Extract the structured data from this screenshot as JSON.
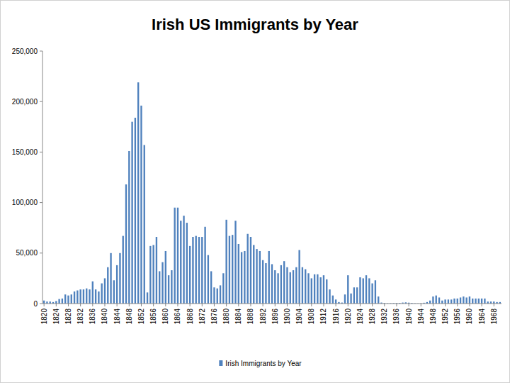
{
  "chart_data": {
    "type": "bar",
    "title": "Irish US Immigrants by Year",
    "categories": [
      "1820",
      null,
      null,
      null,
      "1824",
      null,
      null,
      null,
      "1828",
      null,
      null,
      null,
      "1832",
      null,
      null,
      null,
      "1836",
      null,
      null,
      null,
      "1840",
      null,
      null,
      null,
      "1844",
      null,
      null,
      null,
      "1848",
      null,
      null,
      null,
      "1852",
      null,
      null,
      null,
      "1856",
      null,
      null,
      null,
      "1860",
      null,
      null,
      null,
      "1864",
      null,
      null,
      null,
      "1868",
      null,
      null,
      null,
      "1872",
      null,
      null,
      null,
      "1876",
      null,
      null,
      null,
      "1880",
      null,
      null,
      null,
      "1884",
      null,
      null,
      null,
      "1888",
      null,
      null,
      null,
      "1892",
      null,
      null,
      null,
      "1896",
      null,
      null,
      null,
      "1900",
      null,
      null,
      null,
      "1904",
      null,
      null,
      null,
      "1908",
      null,
      null,
      null,
      "1912",
      null,
      null,
      null,
      "1916",
      null,
      null,
      null,
      "1920",
      null,
      null,
      null,
      "1924",
      null,
      null,
      null,
      "1928",
      null,
      null,
      null,
      "1932",
      null,
      null,
      null,
      "1936",
      null,
      null,
      null,
      "1940",
      null,
      null,
      null,
      "1944",
      null,
      null,
      null,
      "1948",
      null,
      null,
      null,
      "1952",
      null,
      null,
      null,
      "1956",
      null,
      null,
      null,
      "1960",
      null,
      null,
      null,
      "1964",
      null,
      null,
      null,
      "1968",
      null,
      null
    ],
    "series": [
      {
        "name": "Irish Immigrants by Year",
        "color": "#4f81bd",
        "values": [
          3000,
          2000,
          2000,
          1500,
          2500,
          4500,
          5000,
          9000,
          8000,
          9000,
          12000,
          13000,
          14000,
          14000,
          15000,
          14000,
          22000,
          14000,
          12000,
          20000,
          25000,
          36000,
          50000,
          23000,
          38000,
          50000,
          67000,
          118000,
          151000,
          180000,
          184000,
          219000,
          196000,
          157000,
          11000,
          57000,
          58000,
          66000,
          32000,
          41000,
          52000,
          28000,
          33000,
          95000,
          95000,
          82000,
          87000,
          80000,
          57000,
          66000,
          67000,
          66000,
          66000,
          76000,
          48000,
          32000,
          16000,
          15000,
          18000,
          30000,
          83000,
          67000,
          68000,
          82000,
          59000,
          51000,
          52000,
          69000,
          66000,
          58000,
          54000,
          52000,
          43000,
          40000,
          52000,
          39000,
          33000,
          30000,
          38000,
          42000,
          36000,
          31000,
          33000,
          36000,
          53000,
          36000,
          34000,
          30000,
          25000,
          29000,
          29000,
          26000,
          28000,
          24000,
          14000,
          8000,
          4000,
          1500,
          1000,
          9000,
          28000,
          10000,
          16000,
          16000,
          26000,
          25000,
          28000,
          25000,
          20000,
          23000,
          7000,
          1000,
          500,
          300,
          400,
          500,
          500,
          600,
          1000,
          1200,
          900,
          600,
          300,
          200,
          300,
          800,
          1500,
          3000,
          7000,
          8000,
          6000,
          3000,
          4000,
          4000,
          4000,
          5000,
          5000,
          6000,
          7000,
          6000,
          7000,
          5000,
          5000,
          5000,
          5000,
          5000,
          2000,
          2000,
          2000,
          1500,
          1500
        ]
      }
    ],
    "ylim": [
      0,
      250000
    ],
    "yticks": [
      0,
      {
        "value": 50000,
        "label": "50,000"
      },
      {
        "value": 100000,
        "label": "100,000"
      },
      {
        "value": 150000,
        "label": "150,000"
      },
      {
        "value": 200000,
        "label": "200,000"
      },
      {
        "value": 250000,
        "label": "250,000"
      }
    ],
    "grid": false,
    "legend": "bottom"
  }
}
